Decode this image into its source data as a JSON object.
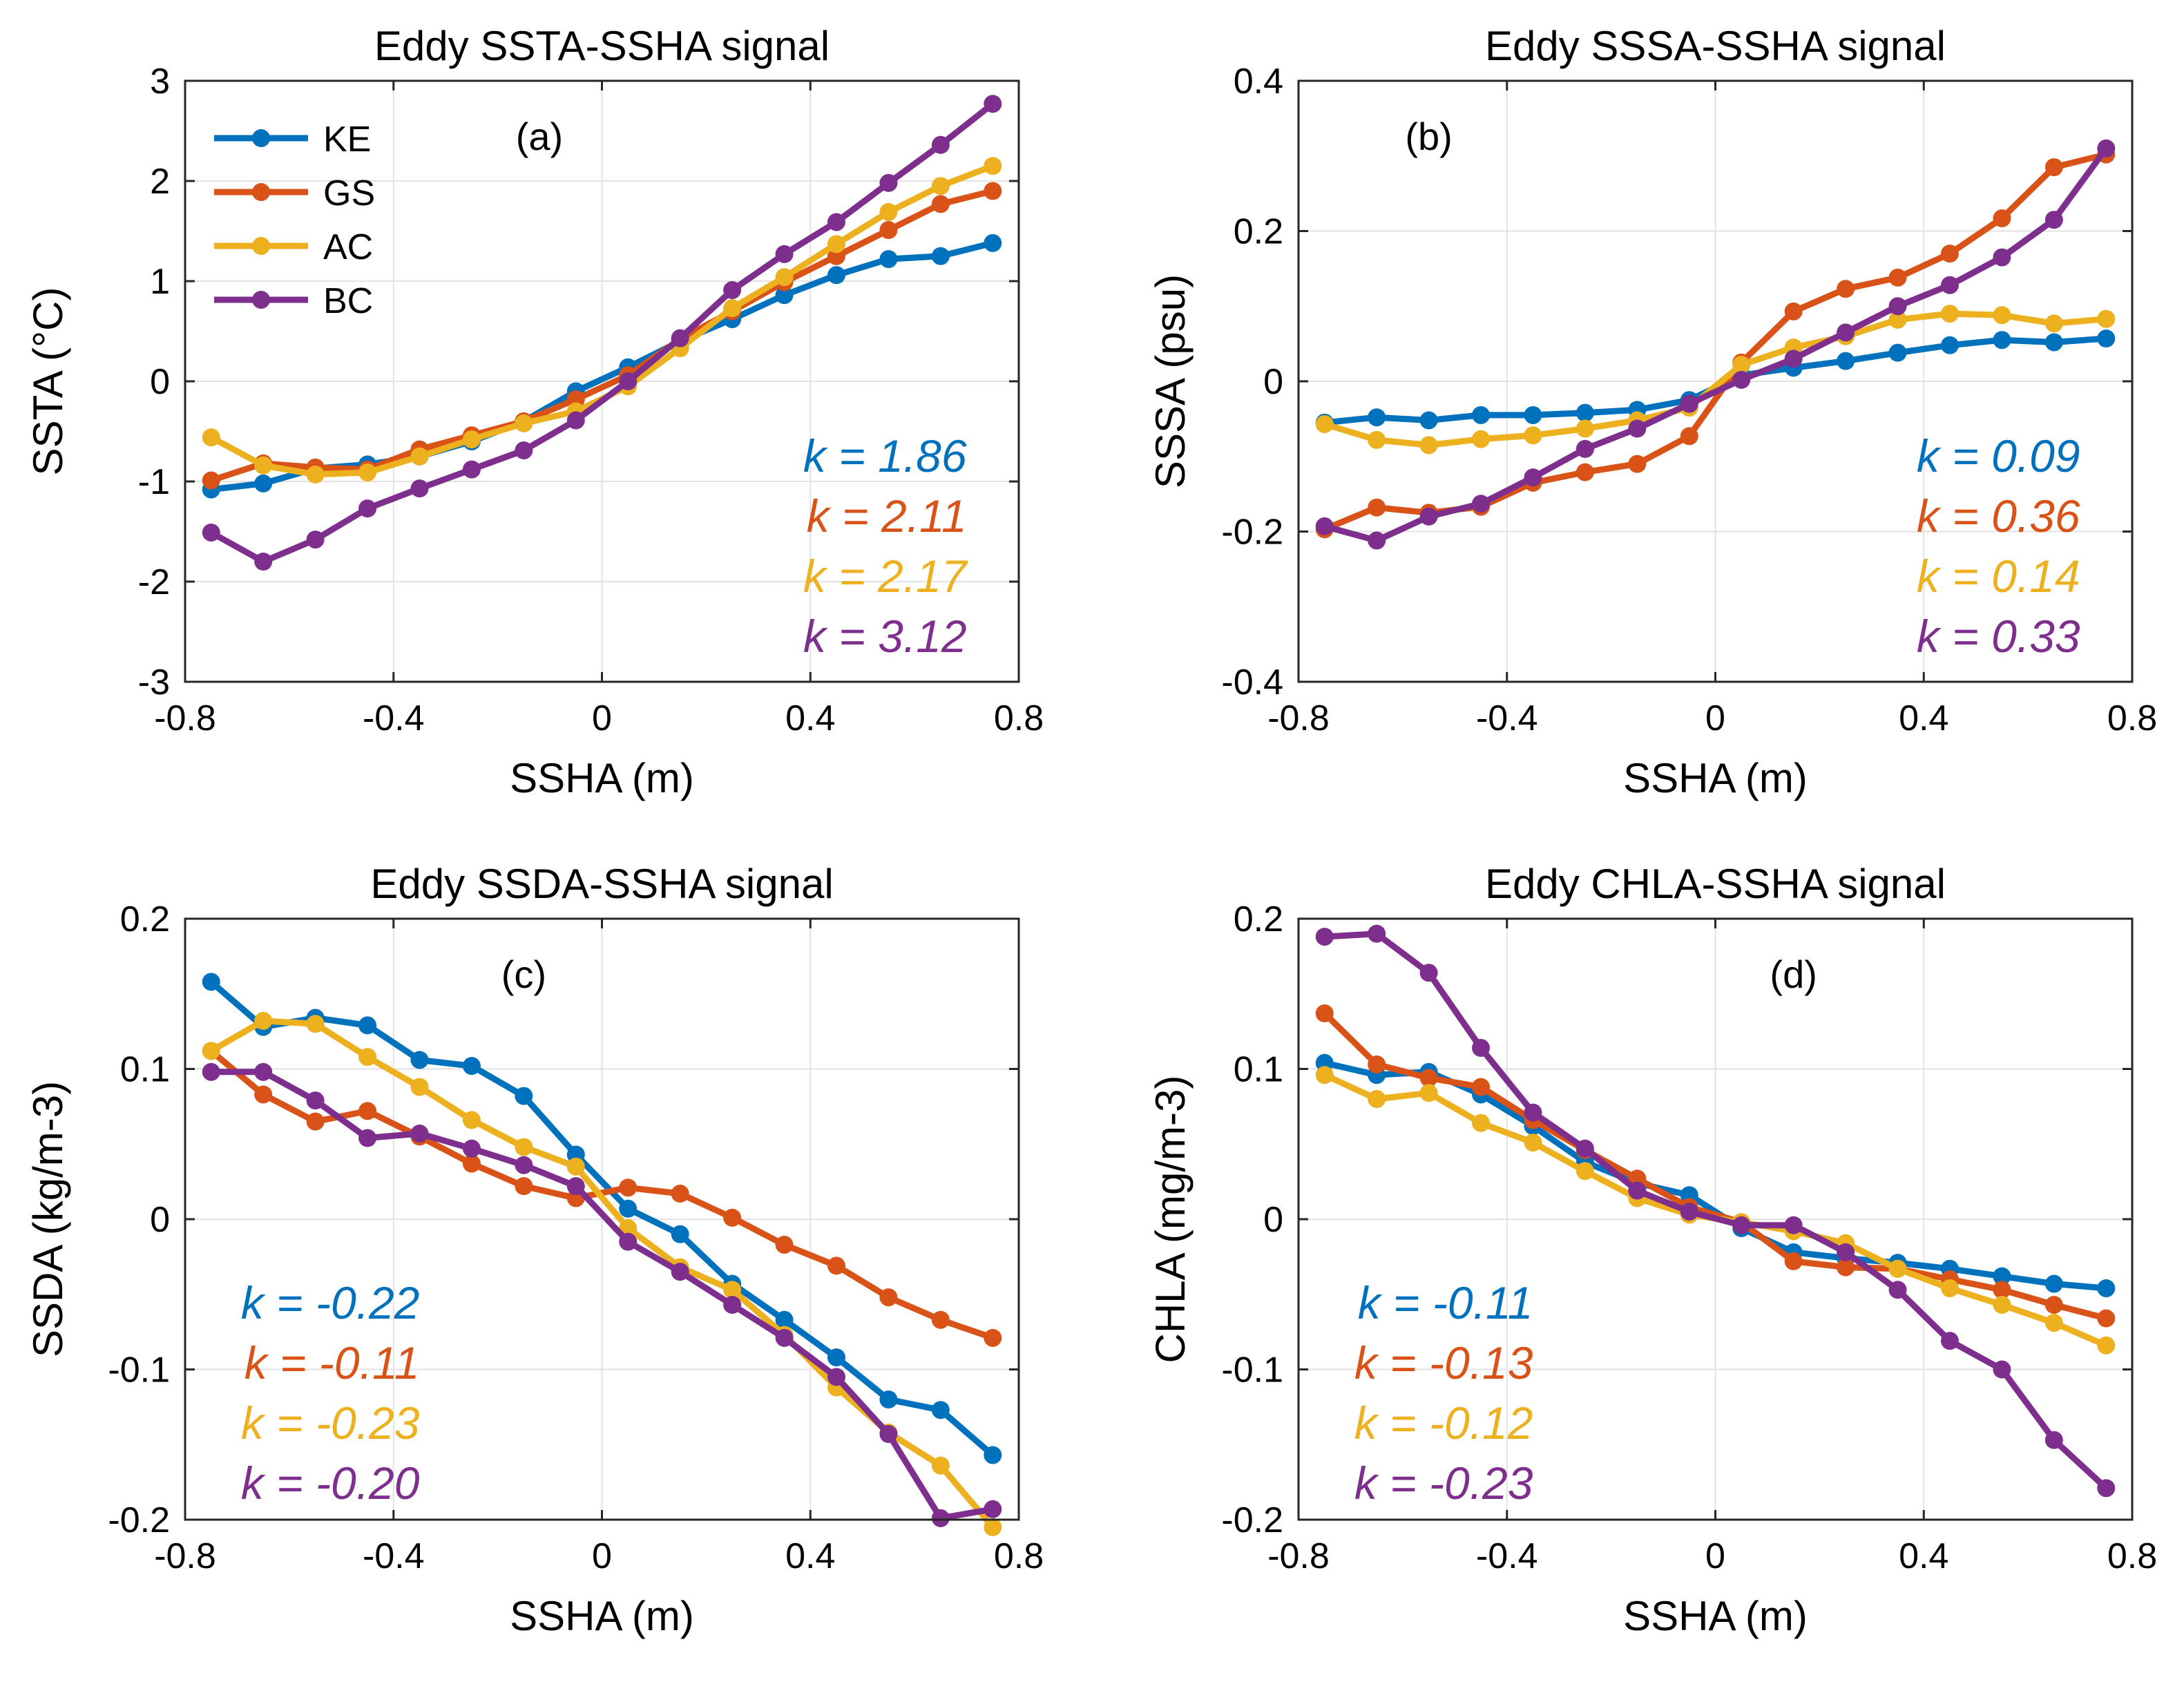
{
  "colors": {
    "KE": "#0072BD",
    "GS": "#D95319",
    "AC": "#EDB120",
    "BC": "#7E2F8E"
  },
  "chart_data": [
    {
      "type": "line",
      "title": "Eddy SSTA-SSHA signal",
      "panel_label": "(a)",
      "xlabel": "SSHA (m)",
      "ylabel": "SSTA (°C)",
      "xlim": [
        -0.8,
        0.8
      ],
      "ylim": [
        -3,
        3
      ],
      "xticks": [
        -0.8,
        -0.4,
        0,
        0.4,
        0.8
      ],
      "xtick_labels": [
        "-0.8",
        "-0.4",
        "0",
        "0.4",
        "0.8"
      ],
      "yticks": [
        -3,
        -2,
        -1,
        0,
        1,
        2,
        3
      ],
      "ytick_labels": [
        "-3",
        "-2",
        "-1",
        "0",
        "1",
        "2",
        "3"
      ],
      "grid": true,
      "legend": {
        "show": true,
        "position": "top-left"
      },
      "annotation_position": "bottom-right",
      "x": [
        -0.75,
        -0.65,
        -0.55,
        -0.45,
        -0.35,
        -0.25,
        -0.15,
        -0.05,
        0.05,
        0.15,
        0.25,
        0.35,
        0.45,
        0.55,
        0.65,
        0.75
      ],
      "series": [
        {
          "name": "KE",
          "k_label": "k = 1.86",
          "values": [
            -1.08,
            -1.02,
            -0.87,
            -0.83,
            -0.75,
            -0.6,
            -0.4,
            -0.1,
            0.14,
            0.4,
            0.62,
            0.86,
            1.06,
            1.22,
            1.25,
            1.38
          ]
        },
        {
          "name": "GS",
          "k_label": "k = 2.11",
          "values": [
            -0.99,
            -0.82,
            -0.86,
            -0.88,
            -0.68,
            -0.54,
            -0.4,
            -0.18,
            0.06,
            0.42,
            0.7,
            0.99,
            1.25,
            1.51,
            1.77,
            1.9
          ]
        },
        {
          "name": "AC",
          "k_label": "k = 2.17",
          "values": [
            -0.56,
            -0.84,
            -0.93,
            -0.91,
            -0.75,
            -0.58,
            -0.42,
            -0.3,
            -0.05,
            0.33,
            0.73,
            1.04,
            1.37,
            1.69,
            1.95,
            2.15
          ]
        },
        {
          "name": "BC",
          "k_label": "k = 3.12",
          "values": [
            -1.51,
            -1.8,
            -1.58,
            -1.27,
            -1.07,
            -0.88,
            -0.69,
            -0.39,
            0.0,
            0.43,
            0.91,
            1.27,
            1.59,
            1.98,
            2.36,
            2.77
          ]
        }
      ]
    },
    {
      "type": "line",
      "title": "Eddy SSSA-SSHA signal",
      "panel_label": "(b)",
      "xlabel": "SSHA (m)",
      "ylabel": "SSSA (psu)",
      "xlim": [
        -0.8,
        0.8
      ],
      "ylim": [
        -0.4,
        0.4
      ],
      "xticks": [
        -0.8,
        -0.4,
        0,
        0.4,
        0.8
      ],
      "xtick_labels": [
        "-0.8",
        "-0.4",
        "0",
        "0.4",
        "0.8"
      ],
      "yticks": [
        -0.4,
        -0.2,
        0,
        0.2,
        0.4
      ],
      "ytick_labels": [
        "-0.4",
        "-0.2",
        "0",
        "0.2",
        "0.4"
      ],
      "grid": true,
      "legend": {
        "show": false
      },
      "annotation_position": "bottom-right",
      "x": [
        -0.75,
        -0.65,
        -0.55,
        -0.45,
        -0.35,
        -0.25,
        -0.15,
        -0.05,
        0.05,
        0.15,
        0.25,
        0.35,
        0.45,
        0.55,
        0.65,
        0.75
      ],
      "series": [
        {
          "name": "KE",
          "k_label": "k = 0.09",
          "values": [
            -0.055,
            -0.048,
            -0.052,
            -0.045,
            -0.045,
            -0.042,
            -0.038,
            -0.025,
            0.008,
            0.018,
            0.027,
            0.038,
            0.048,
            0.055,
            0.052,
            0.057
          ]
        },
        {
          "name": "GS",
          "k_label": "k = 0.36",
          "values": [
            -0.197,
            -0.168,
            -0.175,
            -0.167,
            -0.135,
            -0.121,
            -0.11,
            -0.073,
            0.025,
            0.093,
            0.123,
            0.138,
            0.17,
            0.217,
            0.285,
            0.302
          ]
        },
        {
          "name": "AC",
          "k_label": "k = 0.14",
          "values": [
            -0.057,
            -0.078,
            -0.085,
            -0.077,
            -0.072,
            -0.063,
            -0.052,
            -0.035,
            0.022,
            0.045,
            0.06,
            0.082,
            0.09,
            0.088,
            0.077,
            0.083
          ]
        },
        {
          "name": "BC",
          "k_label": "k = 0.33",
          "values": [
            -0.193,
            -0.212,
            -0.18,
            -0.163,
            -0.128,
            -0.09,
            -0.063,
            -0.03,
            0.002,
            0.03,
            0.065,
            0.1,
            0.128,
            0.165,
            0.215,
            0.31
          ]
        }
      ]
    },
    {
      "type": "line",
      "title": "Eddy SSDA-SSHA signal",
      "panel_label": "(c)",
      "xlabel": "SSHA (m)",
      "ylabel": "SSDA (kg/m-3)",
      "xlim": [
        -0.8,
        0.8
      ],
      "ylim": [
        -0.2,
        0.2
      ],
      "xticks": [
        -0.8,
        -0.4,
        0,
        0.4,
        0.8
      ],
      "xtick_labels": [
        "-0.8",
        "-0.4",
        "0",
        "0.4",
        "0.8"
      ],
      "yticks": [
        -0.2,
        -0.1,
        0,
        0.1,
        0.2
      ],
      "ytick_labels": [
        "-0.2",
        "-0.1",
        "0",
        "0.1",
        "0.2"
      ],
      "grid": true,
      "legend": {
        "show": false
      },
      "annotation_position": "bottom-left",
      "x": [
        -0.75,
        -0.65,
        -0.55,
        -0.45,
        -0.35,
        -0.25,
        -0.15,
        -0.05,
        0.05,
        0.15,
        0.25,
        0.35,
        0.45,
        0.55,
        0.65,
        0.75
      ],
      "series": [
        {
          "name": "KE",
          "k_label": "k = -0.22",
          "values": [
            0.158,
            0.128,
            0.134,
            0.129,
            0.106,
            0.102,
            0.082,
            0.043,
            0.007,
            -0.01,
            -0.043,
            -0.067,
            -0.092,
            -0.12,
            -0.127,
            -0.157
          ]
        },
        {
          "name": "GS",
          "k_label": "k = -0.11",
          "values": [
            0.112,
            0.083,
            0.065,
            0.072,
            0.055,
            0.037,
            0.022,
            0.014,
            0.021,
            0.017,
            0.001,
            -0.017,
            -0.031,
            -0.052,
            -0.067,
            -0.079
          ]
        },
        {
          "name": "AC",
          "k_label": "k = -0.23",
          "values": [
            0.112,
            0.132,
            0.13,
            0.108,
            0.088,
            0.066,
            0.048,
            0.035,
            -0.006,
            -0.032,
            -0.047,
            -0.077,
            -0.112,
            -0.142,
            -0.164,
            -0.205
          ]
        },
        {
          "name": "BC",
          "k_label": "k = -0.20",
          "values": [
            0.098,
            0.098,
            0.079,
            0.054,
            0.057,
            0.047,
            0.036,
            0.022,
            -0.015,
            -0.035,
            -0.057,
            -0.079,
            -0.105,
            -0.143,
            -0.199,
            -0.193
          ]
        }
      ]
    },
    {
      "type": "line",
      "title": "Eddy CHLA-SSHA signal",
      "panel_label": "(d)",
      "xlabel": "SSHA (m)",
      "ylabel": "CHLA (mg/m-3)",
      "xlim": [
        -0.8,
        0.8
      ],
      "ylim": [
        -0.2,
        0.2
      ],
      "xticks": [
        -0.8,
        -0.4,
        0,
        0.4,
        0.8
      ],
      "xtick_labels": [
        "-0.8",
        "-0.4",
        "0",
        "0.4",
        "0.8"
      ],
      "yticks": [
        -0.2,
        -0.1,
        0,
        0.1,
        0.2
      ],
      "ytick_labels": [
        "-0.2",
        "-0.1",
        "0",
        "0.1",
        "0.2"
      ],
      "grid": true,
      "legend": {
        "show": false
      },
      "annotation_position": "bottom-left",
      "x": [
        -0.75,
        -0.65,
        -0.55,
        -0.45,
        -0.35,
        -0.25,
        -0.15,
        -0.05,
        0.05,
        0.15,
        0.25,
        0.35,
        0.45,
        0.55,
        0.65,
        0.75
      ],
      "series": [
        {
          "name": "KE",
          "k_label": "k = -0.11",
          "values": [
            0.104,
            0.096,
            0.098,
            0.083,
            0.062,
            0.038,
            0.024,
            0.016,
            -0.006,
            -0.022,
            -0.026,
            -0.029,
            -0.033,
            -0.038,
            -0.043,
            -0.046
          ]
        },
        {
          "name": "GS",
          "k_label": "k = -0.13",
          "values": [
            0.137,
            0.103,
            0.094,
            0.088,
            0.066,
            0.046,
            0.027,
            0.008,
            -0.002,
            -0.028,
            -0.032,
            -0.033,
            -0.04,
            -0.047,
            -0.057,
            -0.066
          ]
        },
        {
          "name": "AC",
          "k_label": "k = -0.12",
          "values": [
            0.096,
            0.08,
            0.084,
            0.064,
            0.051,
            0.032,
            0.014,
            0.003,
            -0.002,
            -0.008,
            -0.016,
            -0.033,
            -0.046,
            -0.057,
            -0.069,
            -0.084
          ]
        },
        {
          "name": "BC",
          "k_label": "k = -0.23",
          "values": [
            0.188,
            0.19,
            0.164,
            0.114,
            0.071,
            0.047,
            0.019,
            0.005,
            -0.004,
            -0.004,
            -0.022,
            -0.047,
            -0.081,
            -0.1,
            -0.147,
            -0.179
          ]
        }
      ]
    }
  ]
}
